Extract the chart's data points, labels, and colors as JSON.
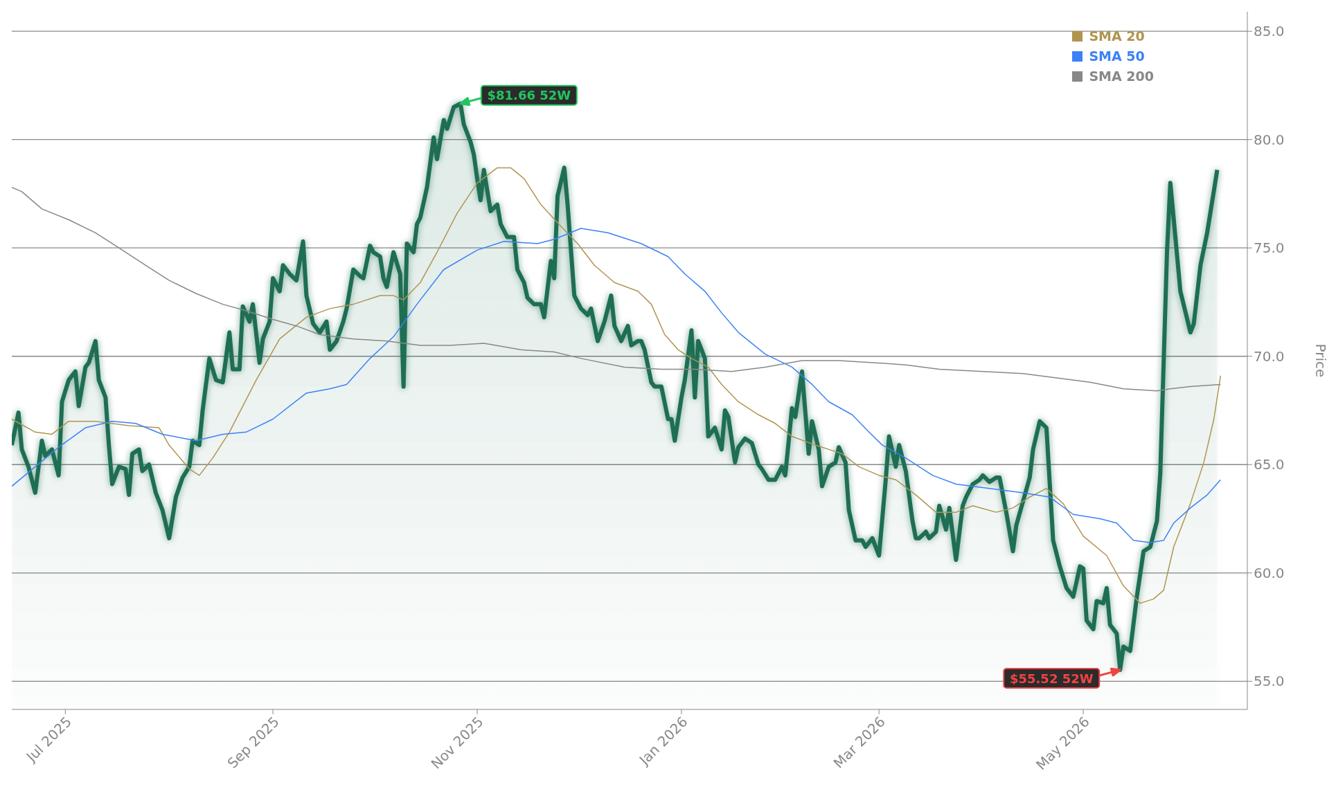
{
  "chart_data": {
    "type": "line",
    "ylabel": "Price",
    "xlim": [
      "2025-06-15",
      "2026-06-19"
    ],
    "ylim": [
      53.7,
      85.9
    ],
    "xticks": [
      {
        "value": "2025-07-01",
        "label": "Jul 2025"
      },
      {
        "value": "2025-09-01",
        "label": "Sep 2025"
      },
      {
        "value": "2025-11-01",
        "label": "Nov 2025"
      },
      {
        "value": "2026-01-01",
        "label": "Jan 2026"
      },
      {
        "value": "2026-03-01",
        "label": "Mar 2026"
      },
      {
        "value": "2026-05-01",
        "label": "May 2026"
      }
    ],
    "yticks": [
      {
        "value": 55,
        "label": "55.0"
      },
      {
        "value": 60,
        "label": "60.0"
      },
      {
        "value": 65,
        "label": "65.0"
      },
      {
        "value": 70,
        "label": "70.0"
      },
      {
        "value": 75,
        "label": "75.0"
      },
      {
        "value": 80,
        "label": "80.0"
      },
      {
        "value": 85,
        "label": "85.0"
      }
    ],
    "grid": "y",
    "legend": "top right",
    "annotations": [
      {
        "text": "$81.66 52W",
        "x": "2025-10-27",
        "y": 81.66
      },
      {
        "text": "$55.52 52W",
        "x": "2026-05-12",
        "y": 55.52
      }
    ],
    "series": [
      {
        "type": "area",
        "color": "#1e6e54",
        "x": [
          "2025-06-15",
          "2025-06-17",
          "2025-06-18",
          "2025-06-20",
          "2025-06-22",
          "2025-06-24",
          "2025-06-25",
          "2025-06-27",
          "2025-06-29",
          "2025-06-30",
          "2025-07-02",
          "2025-07-04",
          "2025-07-05",
          "2025-07-07",
          "2025-07-08",
          "2025-07-10",
          "2025-07-11",
          "2025-07-13",
          "2025-07-14",
          "2025-07-15",
          "2025-07-17",
          "2025-07-19",
          "2025-07-20",
          "2025-07-21",
          "2025-07-23",
          "2025-07-24",
          "2025-07-26",
          "2025-07-28",
          "2025-07-30",
          "2025-08-01",
          "2025-08-03",
          "2025-08-05",
          "2025-08-07",
          "2025-08-08",
          "2025-08-10",
          "2025-08-11",
          "2025-08-13",
          "2025-08-15",
          "2025-08-17",
          "2025-08-19",
          "2025-08-20",
          "2025-08-22",
          "2025-08-23",
          "2025-08-25",
          "2025-08-26",
          "2025-08-28",
          "2025-08-29",
          "2025-08-31",
          "2025-09-01",
          "2025-09-03",
          "2025-09-04",
          "2025-09-06",
          "2025-09-08",
          "2025-09-10",
          "2025-09-11",
          "2025-09-13",
          "2025-09-15",
          "2025-09-17",
          "2025-09-18",
          "2025-09-20",
          "2025-09-22",
          "2025-09-23",
          "2025-09-25",
          "2025-09-27",
          "2025-09-28",
          "2025-09-30",
          "2025-10-01",
          "2025-10-03",
          "2025-10-04",
          "2025-10-05",
          "2025-10-07",
          "2025-10-09",
          "2025-10-10",
          "2025-10-11",
          "2025-10-13",
          "2025-10-14",
          "2025-10-15",
          "2025-10-17",
          "2025-10-19",
          "2025-10-20",
          "2025-10-22",
          "2025-10-23",
          "2025-10-25",
          "2025-10-27",
          "2025-10-28",
          "2025-10-30",
          "2025-10-31",
          "2025-11-01",
          "2025-11-02",
          "2025-11-03",
          "2025-11-05",
          "2025-11-07",
          "2025-11-08",
          "2025-11-10",
          "2025-11-12",
          "2025-11-13",
          "2025-11-15",
          "2025-11-16",
          "2025-11-18",
          "2025-11-20",
          "2025-11-21",
          "2025-11-23",
          "2025-11-24",
          "2025-11-25",
          "2025-11-27",
          "2025-11-28",
          "2025-11-30",
          "2025-12-02",
          "2025-12-04",
          "2025-12-05",
          "2025-12-07",
          "2025-12-09",
          "2025-12-11",
          "2025-12-12",
          "2025-12-14",
          "2025-12-16",
          "2025-12-17",
          "2025-12-19",
          "2025-12-20",
          "2025-12-21",
          "2025-12-23",
          "2025-12-24",
          "2025-12-26",
          "2025-12-28",
          "2025-12-29",
          "2025-12-30",
          "2026-01-01",
          "2026-01-02",
          "2026-01-04",
          "2026-01-05",
          "2026-01-06",
          "2026-01-08",
          "2026-01-09",
          "2026-01-11",
          "2026-01-13",
          "2026-01-14",
          "2026-01-15",
          "2026-01-17",
          "2026-01-18",
          "2026-01-20",
          "2026-01-22",
          "2026-01-24",
          "2026-01-25",
          "2026-01-27",
          "2026-01-29",
          "2026-01-31",
          "2026-02-01",
          "2026-02-03",
          "2026-02-04",
          "2026-02-06",
          "2026-02-08",
          "2026-02-09",
          "2026-02-11",
          "2026-02-12",
          "2026-02-14",
          "2026-02-16",
          "2026-02-17",
          "2026-02-19",
          "2026-02-20",
          "2026-02-22",
          "2026-02-24",
          "2026-02-25",
          "2026-02-27",
          "2026-03-01",
          "2026-03-03",
          "2026-03-04",
          "2026-03-06",
          "2026-03-07",
          "2026-03-09",
          "2026-03-11",
          "2026-03-12",
          "2026-03-13",
          "2026-03-15",
          "2026-03-16",
          "2026-03-18",
          "2026-03-19",
          "2026-03-21",
          "2026-03-22",
          "2026-03-24",
          "2026-03-26",
          "2026-03-27",
          "2026-03-29",
          "2026-03-31",
          "2026-04-01",
          "2026-04-03",
          "2026-04-05",
          "2026-04-06",
          "2026-04-08",
          "2026-04-10",
          "2026-04-11",
          "2026-04-13",
          "2026-04-15",
          "2026-04-16",
          "2026-04-18",
          "2026-04-20",
          "2026-04-21",
          "2026-04-22",
          "2026-04-24",
          "2026-04-26",
          "2026-04-27",
          "2026-04-28",
          "2026-04-30",
          "2026-05-01",
          "2026-05-02",
          "2026-05-04",
          "2026-05-05",
          "2026-05-07",
          "2026-05-08",
          "2026-05-09",
          "2026-05-11",
          "2026-05-12",
          "2026-05-13",
          "2026-05-15",
          "2026-05-17",
          "2026-05-19",
          "2026-05-21",
          "2026-05-23",
          "2026-05-24",
          "2026-05-26",
          "2026-05-27",
          "2026-05-30",
          "2026-06-02",
          "2026-06-03",
          "2026-06-05",
          "2026-06-07",
          "2026-06-10"
        ],
        "values": [
          65.9,
          67.4,
          65.7,
          64.9,
          63.7,
          66.1,
          65.4,
          65.7,
          64.5,
          67.9,
          68.9,
          69.3,
          67.7,
          69.5,
          69.7,
          70.7,
          68.9,
          68.1,
          65.9,
          64.1,
          64.9,
          64.8,
          63.6,
          65.5,
          65.7,
          64.7,
          65.0,
          63.7,
          62.9,
          61.6,
          63.5,
          64.4,
          64.9,
          66.1,
          65.9,
          67.5,
          69.9,
          68.9,
          68.8,
          71.1,
          69.4,
          69.4,
          72.3,
          71.6,
          72.4,
          69.7,
          70.8,
          71.6,
          73.6,
          73.0,
          74.2,
          73.8,
          73.5,
          75.3,
          72.8,
          71.5,
          71.1,
          71.6,
          70.3,
          70.7,
          71.6,
          72.2,
          74.0,
          73.7,
          73.6,
          75.1,
          74.8,
          74.6,
          73.6,
          73.2,
          74.8,
          73.8,
          68.6,
          75.2,
          74.8,
          76.1,
          76.4,
          77.8,
          80.1,
          79.1,
          80.9,
          80.5,
          81.5,
          81.66,
          80.7,
          79.9,
          79.3,
          78.2,
          77.2,
          78.6,
          76.7,
          77.0,
          76.1,
          75.5,
          75.5,
          74.0,
          73.4,
          72.7,
          72.4,
          72.4,
          71.8,
          74.4,
          73.6,
          77.4,
          78.7,
          77.0,
          72.8,
          72.2,
          71.9,
          72.2,
          70.7,
          71.6,
          72.8,
          71.4,
          70.7,
          71.4,
          70.5,
          70.7,
          70.7,
          70.3,
          68.8,
          68.6,
          68.6,
          67.1,
          67.1,
          66.1,
          68.1,
          68.9,
          71.2,
          68.1,
          70.7,
          69.9,
          66.3,
          66.7,
          65.7,
          67.5,
          67.2,
          65.1,
          65.8,
          66.2,
          66.0,
          65.0,
          64.8,
          64.3,
          64.3,
          64.9,
          64.5,
          67.6,
          67.2,
          69.3,
          65.5,
          67.0,
          65.7,
          64.0,
          64.9,
          65.1,
          65.8,
          65.1,
          62.9,
          61.5,
          61.5,
          61.2,
          61.6,
          60.8,
          64.3,
          66.3,
          64.9,
          65.9,
          64.7,
          62.4,
          61.6,
          61.6,
          61.9,
          61.6,
          61.9,
          63.1,
          62.0,
          63.0,
          60.6,
          63.1,
          63.5,
          64.1,
          64.3,
          64.5,
          64.2,
          64.4,
          64.4,
          62.8,
          61.0,
          62.2,
          63.3,
          64.4,
          65.7,
          67.0,
          66.7,
          64.1,
          61.5,
          60.3,
          59.3,
          59.1,
          58.9,
          60.3,
          60.2,
          57.8,
          57.4,
          58.7,
          58.6,
          59.3,
          57.6,
          57.2,
          55.52,
          56.6,
          56.4,
          58.9,
          61.0,
          61.2,
          62.4,
          64.6,
          74.8,
          78.0,
          73.0,
          71.1,
          71.5,
          74.2,
          75.7,
          78.6
        ]
      },
      {
        "name": "SMA 20",
        "type": "line",
        "color": "#b0954f",
        "x": [
          "2025-06-15",
          "2025-06-22",
          "2025-06-27",
          "2025-07-02",
          "2025-07-10",
          "2025-07-20",
          "2025-07-29",
          "2025-08-01",
          "2025-08-07",
          "2025-08-10",
          "2025-08-14",
          "2025-08-19",
          "2025-08-27",
          "2025-09-03",
          "2025-09-11",
          "2025-09-18",
          "2025-09-25",
          "2025-10-03",
          "2025-10-07",
          "2025-10-10",
          "2025-10-15",
          "2025-10-20",
          "2025-10-26",
          "2025-11-01",
          "2025-11-07",
          "2025-11-11",
          "2025-11-15",
          "2025-11-20",
          "2025-11-26",
          "2025-12-01",
          "2025-12-06",
          "2025-12-12",
          "2025-12-19",
          "2025-12-23",
          "2025-12-27",
          "2025-12-31",
          "2026-01-04",
          "2026-01-09",
          "2026-01-13",
          "2026-01-18",
          "2026-01-24",
          "2026-01-29",
          "2026-02-03",
          "2026-02-10",
          "2026-02-18",
          "2026-02-23",
          "2026-03-01",
          "2026-03-06",
          "2026-03-12",
          "2026-03-18",
          "2026-03-24",
          "2026-03-29",
          "2026-04-05",
          "2026-04-10",
          "2026-04-15",
          "2026-04-20",
          "2026-04-25",
          "2026-05-01",
          "2026-05-08",
          "2026-05-13",
          "2026-05-18",
          "2026-05-22",
          "2026-05-25",
          "2026-05-28",
          "2026-06-02",
          "2026-06-06",
          "2026-06-09",
          "2026-06-11"
        ],
        "values": [
          67.1,
          66.5,
          66.4,
          67.0,
          67.0,
          66.8,
          66.7,
          65.9,
          64.8,
          64.5,
          65.3,
          66.5,
          68.9,
          70.8,
          71.8,
          72.2,
          72.4,
          72.8,
          72.8,
          72.6,
          73.4,
          74.8,
          76.6,
          78.0,
          78.7,
          78.7,
          78.2,
          77.0,
          76.0,
          75.2,
          74.2,
          73.4,
          73.0,
          72.4,
          71.0,
          70.3,
          69.9,
          69.5,
          68.7,
          67.9,
          67.3,
          66.9,
          66.3,
          65.9,
          65.5,
          64.9,
          64.5,
          64.3,
          63.6,
          62.8,
          62.8,
          63.1,
          62.8,
          63.0,
          63.5,
          63.9,
          63.2,
          61.7,
          60.8,
          59.4,
          58.6,
          58.8,
          59.2,
          61.2,
          63.2,
          65.1,
          67.1,
          69.1
        ]
      },
      {
        "name": "SMA 50",
        "type": "line",
        "color": "#3b82f6",
        "x": [
          "2025-06-15",
          "2025-06-22",
          "2025-06-29",
          "2025-07-07",
          "2025-07-15",
          "2025-07-22",
          "2025-07-30",
          "2025-08-09",
          "2025-08-17",
          "2025-08-24",
          "2025-09-01",
          "2025-09-11",
          "2025-09-18",
          "2025-09-23",
          "2025-09-30",
          "2025-10-07",
          "2025-10-14",
          "2025-10-22",
          "2025-11-01",
          "2025-11-09",
          "2025-11-19",
          "2025-11-24",
          "2025-12-02",
          "2025-12-10",
          "2025-12-20",
          "2025-12-28",
          "2026-01-02",
          "2026-01-08",
          "2026-01-13",
          "2026-01-18",
          "2026-01-26",
          "2026-02-03",
          "2026-02-09",
          "2026-02-14",
          "2026-02-21",
          "2026-02-26",
          "2026-03-02",
          "2026-03-09",
          "2026-03-17",
          "2026-03-24",
          "2026-04-03",
          "2026-04-13",
          "2026-04-21",
          "2026-04-28",
          "2026-05-06",
          "2026-05-11",
          "2026-05-16",
          "2026-05-21",
          "2026-05-25",
          "2026-05-28",
          "2026-06-02",
          "2026-06-07",
          "2026-06-11"
        ],
        "values": [
          64.0,
          64.9,
          65.8,
          66.7,
          67.0,
          66.9,
          66.4,
          66.1,
          66.4,
          66.5,
          67.1,
          68.3,
          68.5,
          68.7,
          69.9,
          70.9,
          72.4,
          74.0,
          74.9,
          75.3,
          75.2,
          75.4,
          75.9,
          75.7,
          75.2,
          74.6,
          73.8,
          73.0,
          72.0,
          71.1,
          70.1,
          69.5,
          68.7,
          67.9,
          67.3,
          66.5,
          65.9,
          65.3,
          64.5,
          64.1,
          63.9,
          63.7,
          63.5,
          62.7,
          62.5,
          62.3,
          61.5,
          61.4,
          61.5,
          62.3,
          63.0,
          63.6,
          64.3
        ]
      },
      {
        "name": "SMA 200",
        "type": "line",
        "color": "#888888",
        "x": [
          "2025-06-15",
          "2025-06-18",
          "2025-06-24",
          "2025-07-02",
          "2025-07-10",
          "2025-07-17",
          "2025-07-25",
          "2025-08-01",
          "2025-08-09",
          "2025-08-17",
          "2025-08-24",
          "2025-09-01",
          "2025-09-08",
          "2025-09-15",
          "2025-09-25",
          "2025-10-05",
          "2025-10-15",
          "2025-10-24",
          "2025-11-03",
          "2025-11-14",
          "2025-11-24",
          "2025-12-02",
          "2025-12-15",
          "2025-12-26",
          "2026-01-05",
          "2026-01-16",
          "2026-01-26",
          "2026-02-06",
          "2026-02-17",
          "2026-02-28",
          "2026-03-09",
          "2026-03-19",
          "2026-04-01",
          "2026-04-13",
          "2026-04-23",
          "2026-05-03",
          "2026-05-13",
          "2026-05-23",
          "2026-05-27",
          "2026-06-02",
          "2026-06-11"
        ],
        "values": [
          77.8,
          77.6,
          76.8,
          76.3,
          75.7,
          75.0,
          74.2,
          73.5,
          72.9,
          72.4,
          72.1,
          71.7,
          71.4,
          71.0,
          70.8,
          70.7,
          70.5,
          70.5,
          70.6,
          70.3,
          70.2,
          69.9,
          69.5,
          69.4,
          69.4,
          69.3,
          69.5,
          69.8,
          69.8,
          69.7,
          69.6,
          69.4,
          69.3,
          69.2,
          69.0,
          68.8,
          68.5,
          68.4,
          68.5,
          68.6,
          68.7
        ]
      }
    ]
  }
}
